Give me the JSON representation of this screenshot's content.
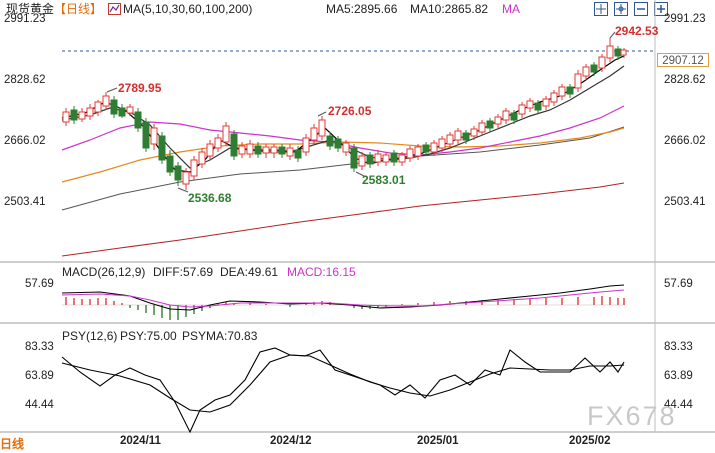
{
  "header": {
    "symbol": "现货黄金",
    "period": "【日线】",
    "ma_label": "MA(5,10,30,60,100,200)",
    "ma5": "MA5:2895.66",
    "ma10": "MA10:2865.82",
    "ma": "MA"
  },
  "price_axis": {
    "ticks_left": [
      "2991.23",
      "2828.62",
      "2666.02",
      "2503.41"
    ],
    "ticks_right": [
      "2991.23",
      "2828.62",
      "2666.02",
      "2503.41"
    ],
    "current_price": "2907.12"
  },
  "annotations": {
    "high_right": "2942.53",
    "high_left": "2789.95",
    "high_mid": "2726.05",
    "low_left": "2536.68",
    "low_mid": "2583.01"
  },
  "macd": {
    "label": "MACD(26,12,9)",
    "diff": "DIFF:57.69",
    "dea": "DEA:49.61",
    "macd": "MACD:16.15",
    "tick_left": "57.69",
    "tick_right": "57.69"
  },
  "psy": {
    "label": "PSY(12,6)",
    "psy": "PSY:75.00",
    "psyma": "PSYMA:70.83",
    "ticks_left": [
      "83.33",
      "63.89",
      "44.44"
    ],
    "ticks_right": [
      "83.33",
      "63.89",
      "44.44"
    ]
  },
  "x_axis": [
    "2024/11",
    "2024/12",
    "2025/01",
    "2025/02"
  ],
  "footer": {
    "period": "日线"
  },
  "watermark": "FX678",
  "colors": {
    "up": "#e53935",
    "down": "#2e7d32",
    "ma5": "#000000",
    "ma10": "#222222",
    "ma30": "#cc33cc",
    "ma60": "#e88a1a",
    "ma100": "#666666",
    "ma200": "#b22222"
  },
  "toolbar_icons": [
    "grid-icon",
    "grid-alt-icon",
    "minus-zoom-icon",
    "plus-zoom-icon"
  ]
}
